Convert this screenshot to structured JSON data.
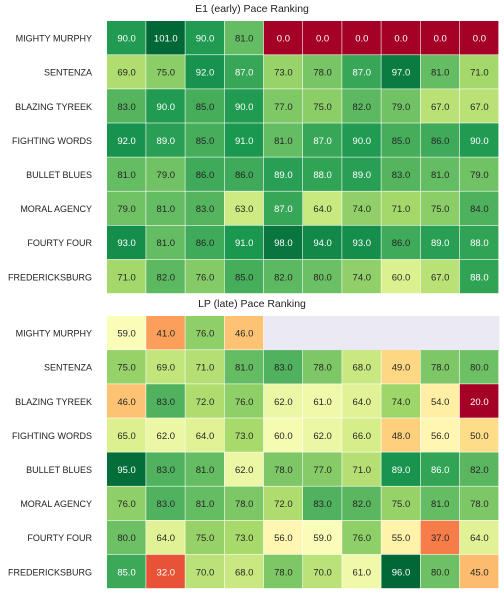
{
  "chart_data": [
    {
      "type": "heatmap",
      "title": "E1 (early) Pace Ranking",
      "colormap": "RdYlGn",
      "value_range": [
        0,
        101
      ],
      "rows": [
        "MIGHTY MURPHY",
        "SENTENZA",
        "BLAZING TYREEK",
        "FIGHTING WORDS",
        "BULLET BLUES",
        "MORAL AGENCY",
        "FOURTY FOUR",
        "FREDERICKSBURG"
      ],
      "values": [
        [
          90.0,
          101.0,
          90.0,
          81.0,
          0.0,
          0.0,
          0.0,
          0.0,
          0.0,
          0.0
        ],
        [
          69.0,
          75.0,
          92.0,
          87.0,
          73.0,
          78.0,
          87.0,
          97.0,
          81.0,
          71.0
        ],
        [
          83.0,
          90.0,
          85.0,
          90.0,
          77.0,
          75.0,
          82.0,
          79.0,
          67.0,
          67.0
        ],
        [
          92.0,
          89.0,
          85.0,
          91.0,
          81.0,
          87.0,
          90.0,
          85.0,
          86.0,
          90.0
        ],
        [
          81.0,
          79.0,
          86.0,
          86.0,
          89.0,
          88.0,
          89.0,
          83.0,
          81.0,
          79.0
        ],
        [
          79.0,
          81.0,
          83.0,
          63.0,
          87.0,
          64.0,
          74.0,
          71.0,
          75.0,
          84.0
        ],
        [
          93.0,
          81.0,
          86.0,
          91.0,
          98.0,
          94.0,
          93.0,
          86.0,
          89.0,
          88.0
        ],
        [
          71.0,
          82.0,
          76.0,
          85.0,
          82.0,
          80.0,
          74.0,
          60.0,
          67.0,
          88.0
        ]
      ]
    },
    {
      "type": "heatmap",
      "title": "LP (late) Pace Ranking",
      "colormap": "RdYlGn",
      "value_range": [
        20,
        96
      ],
      "missing_color": "#ebe9f3",
      "rows": [
        "MIGHTY MURPHY",
        "SENTENZA",
        "BLAZING TYREEK",
        "FIGHTING WORDS",
        "BULLET BLUES",
        "MORAL AGENCY",
        "FOURTY FOUR",
        "FREDERICKSBURG"
      ],
      "values": [
        [
          59.0,
          41.0,
          76.0,
          46.0,
          null,
          null,
          null,
          null,
          null,
          null
        ],
        [
          75.0,
          69.0,
          71.0,
          81.0,
          83.0,
          78.0,
          68.0,
          49.0,
          78.0,
          80.0
        ],
        [
          46.0,
          83.0,
          72.0,
          76.0,
          62.0,
          61.0,
          64.0,
          74.0,
          54.0,
          20.0
        ],
        [
          65.0,
          62.0,
          64.0,
          73.0,
          60.0,
          62.0,
          66.0,
          48.0,
          56.0,
          50.0
        ],
        [
          95.0,
          83.0,
          81.0,
          62.0,
          78.0,
          77.0,
          71.0,
          89.0,
          86.0,
          82.0
        ],
        [
          76.0,
          83.0,
          81.0,
          78.0,
          72.0,
          83.0,
          82.0,
          75.0,
          81.0,
          78.0
        ],
        [
          80.0,
          64.0,
          75.0,
          73.0,
          56.0,
          59.0,
          76.0,
          55.0,
          37.0,
          64.0
        ],
        [
          85.0,
          32.0,
          70.0,
          68.0,
          78.0,
          70.0,
          61.0,
          96.0,
          80.0,
          45.0
        ]
      ]
    }
  ]
}
